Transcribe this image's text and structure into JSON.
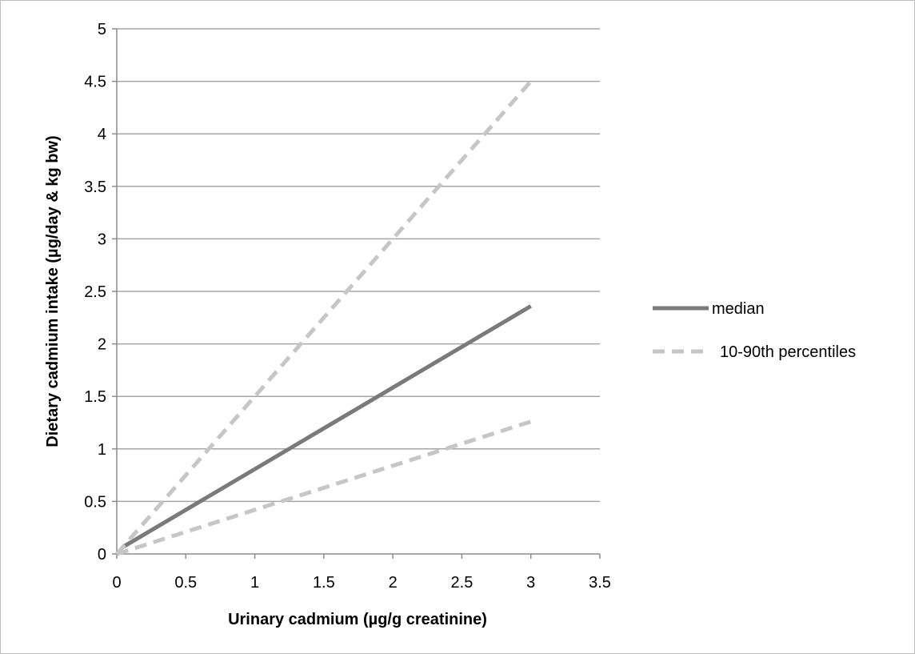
{
  "chart_data": {
    "type": "line",
    "title": "",
    "xlabel": "Urinary cadmium (µg/g creatinine)",
    "ylabel": "Dietary cadmium intake (µg/day & kg bw)",
    "xlim": [
      0,
      3.5
    ],
    "ylim": [
      0,
      5
    ],
    "x_ticks": [
      "0",
      "0.5",
      "1",
      "1.5",
      "2",
      "2.5",
      "3",
      "3.5"
    ],
    "y_ticks": [
      "0",
      "0.5",
      "1",
      "1.5",
      "2",
      "2.5",
      "3",
      "3.5",
      "4",
      "4.5",
      "5"
    ],
    "grid": "horizontal",
    "legend_position": "right",
    "series": [
      {
        "name": "median",
        "style": "solid",
        "color": "#7a7a7a",
        "points": [
          [
            0.05,
            0.07
          ],
          [
            3.0,
            2.36
          ]
        ]
      },
      {
        "name": "10-90th percentiles",
        "style": "dashed",
        "color": "#c6c6c6",
        "points": [
          [
            0.0,
            0.0
          ],
          [
            3.0,
            4.5
          ]
        ]
      },
      {
        "name": "",
        "style": "dashed",
        "color": "#c6c6c6",
        "points": [
          [
            0.0,
            0.0
          ],
          [
            3.0,
            1.26
          ]
        ]
      }
    ],
    "legend": [
      {
        "label": "median",
        "style": "solid",
        "color": "#7a7a7a"
      },
      {
        "label": "10-90th percentiles",
        "style": "dashed",
        "color": "#c6c6c6"
      }
    ]
  }
}
